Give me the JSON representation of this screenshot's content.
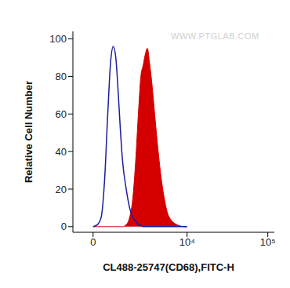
{
  "chart_data": {
    "type": "histogram",
    "x_label": "CL488-25747(CD68),FITC-H",
    "y_label": "Relative Cell Number",
    "annotations": [
      "WWW.PTGLAB.COM"
    ],
    "log": "x",
    "x": [
      0,
      100,
      200,
      300,
      400,
      500,
      600,
      700,
      800,
      900,
      1000,
      1200,
      1400,
      1600,
      1800,
      2000,
      2200,
      2400,
      2600,
      2800,
      3000,
      3300,
      3600,
      4000,
      4500,
      5000,
      5500,
      6000,
      7000,
      8000,
      9000,
      10000
    ],
    "series": [
      {
        "type": "line",
        "color": "#1c1c9c",
        "values": [
          0,
          1,
          5,
          25,
          60,
          88,
          96,
          90,
          72,
          52,
          36,
          20,
          10,
          5,
          3,
          1,
          0.5,
          0,
          0,
          0,
          0,
          0,
          0,
          0,
          0,
          0,
          0,
          0,
          0,
          0,
          0,
          0
        ]
      },
      {
        "type": "area",
        "color": "#d40000",
        "values": [
          0,
          0,
          0,
          0,
          0,
          0,
          0,
          0,
          0,
          0,
          0,
          1,
          5,
          15,
          35,
          60,
          80,
          86,
          92,
          95,
          88,
          75,
          60,
          42,
          25,
          14,
          7,
          4,
          1.5,
          0.5,
          0,
          0
        ]
      }
    ],
    "xlim": [
      -600,
      120000
    ],
    "xticks": [
      0,
      {
        "value": 10000,
        "label": "10⁴"
      },
      {
        "value": 100000,
        "label": "10⁵"
      }
    ],
    "ylim": [
      -3,
      104
    ],
    "yticks": [
      0,
      20,
      40,
      60,
      80,
      100
    ],
    "grid": false
  }
}
